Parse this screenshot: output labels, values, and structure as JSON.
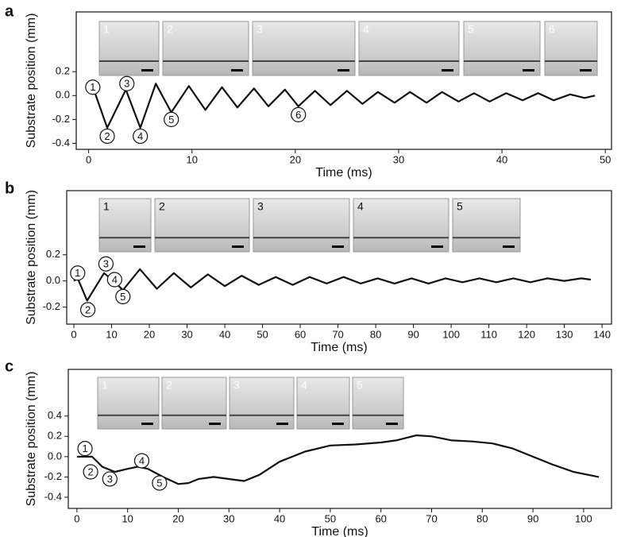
{
  "chart_data": [
    {
      "type": "line",
      "panel": "a",
      "xlabel": "Time (ms)",
      "ylabel": "Substrate position (mm)",
      "xlim": [
        -1.2,
        50.6
      ],
      "ylim": [
        -0.45,
        0.7
      ],
      "xticks": [
        0,
        10,
        20,
        30,
        40,
        50
      ],
      "yticks": [
        -0.4,
        -0.2,
        {
          "value": 0,
          "label": "0.0"
        },
        0.2
      ],
      "x": [
        0,
        0.5,
        1.8,
        3.6,
        5,
        6.5,
        8,
        9.7,
        11.3,
        12.9,
        14.4,
        16,
        17.4,
        19,
        20.3,
        21.9,
        23.4,
        25,
        26.5,
        28,
        29.6,
        31.1,
        32.7,
        34.2,
        35.8,
        37.3,
        38.8,
        40.4,
        42,
        43.5,
        45,
        46.6,
        48,
        49
      ],
      "series": [
        {
          "color": "#111111",
          "values": [
            0.02,
            0.05,
            -0.27,
            0.05,
            -0.27,
            0.1,
            -0.14,
            0.08,
            -0.12,
            0.07,
            -0.1,
            0.06,
            -0.09,
            0.05,
            -0.09,
            0.04,
            -0.08,
            0.04,
            -0.07,
            0.03,
            -0.06,
            0.03,
            -0.06,
            0.03,
            -0.05,
            0.02,
            -0.05,
            0.02,
            -0.04,
            0.02,
            -0.04,
            0.01,
            -0.02,
            0.0
          ]
        }
      ],
      "annotations": [
        {
          "label": "1",
          "x": 0.4,
          "y": 0.07
        },
        {
          "label": "2",
          "x": 1.8,
          "y": -0.34
        },
        {
          "label": "3",
          "x": 3.7,
          "y": 0.1
        },
        {
          "label": "4",
          "x": 5,
          "y": -0.34
        },
        {
          "label": "5",
          "x": 8,
          "y": -0.2
        },
        {
          "label": "6",
          "x": 20.3,
          "y": -0.16
        }
      ],
      "insets": [
        "1",
        "2",
        "3",
        "4",
        "5",
        "6"
      ]
    },
    {
      "type": "line",
      "panel": "b",
      "xlabel": "Time (ms)",
      "ylabel": "Substrate position (mm)",
      "xlim": [
        -1.9,
        142.5
      ],
      "ylim": [
        -0.33,
        0.69
      ],
      "xticks": [
        0,
        10,
        20,
        30,
        40,
        50,
        60,
        70,
        80,
        90,
        100,
        110,
        120,
        130,
        140
      ],
      "yticks": [
        -0.2,
        {
          "value": 0,
          "label": "0.0"
        },
        0.2
      ],
      "x": [
        0,
        1,
        3.5,
        8,
        10.5,
        13,
        17.5,
        22,
        26.5,
        31,
        35.5,
        40,
        44.5,
        49,
        53.5,
        58,
        62.5,
        67,
        71.5,
        76,
        80.5,
        85,
        89.5,
        94,
        98.5,
        103,
        107.5,
        112,
        116.5,
        121,
        125.5,
        130,
        134.5,
        137
      ],
      "series": [
        {
          "color": "#111111",
          "values": [
            0,
            0.02,
            -0.15,
            0.06,
            0.0,
            -0.07,
            0.09,
            -0.06,
            0.06,
            -0.05,
            0.05,
            -0.04,
            0.04,
            -0.03,
            0.03,
            -0.03,
            0.03,
            -0.02,
            0.03,
            -0.02,
            0.02,
            -0.02,
            0.02,
            -0.02,
            0.02,
            -0.01,
            0.02,
            -0.01,
            0.02,
            -0.01,
            0.02,
            0.0,
            0.02,
            0.01
          ]
        }
      ],
      "annotations": [
        {
          "label": "1",
          "x": 1,
          "y": 0.06
        },
        {
          "label": "2",
          "x": 3.7,
          "y": -0.22
        },
        {
          "label": "3",
          "x": 8.5,
          "y": 0.13
        },
        {
          "label": "4",
          "x": 10.8,
          "y": 0.01
        },
        {
          "label": "5",
          "x": 13,
          "y": -0.12
        }
      ],
      "insets": [
        "1",
        "2",
        "3",
        "4",
        "5"
      ]
    },
    {
      "type": "line",
      "panel": "c",
      "xlabel": "Time (ms)",
      "ylabel": "Substrate position (mm)",
      "xlim": [
        -1.7,
        105.5
      ],
      "ylim": [
        -0.51,
        0.86
      ],
      "xticks": [
        0,
        10,
        20,
        30,
        40,
        50,
        60,
        70,
        80,
        90,
        100
      ],
      "yticks": [
        -0.4,
        -0.2,
        {
          "value": 0,
          "label": "0.0"
        },
        0.2,
        0.4
      ],
      "x": [
        0,
        3,
        5,
        7.5,
        10,
        12,
        14,
        17,
        20,
        22,
        24,
        27,
        30,
        33,
        36,
        40,
        45,
        50,
        55,
        60,
        63,
        67,
        70,
        74,
        78,
        82,
        86,
        90,
        94,
        98,
        103
      ],
      "series": [
        {
          "color": "#111111",
          "values": [
            0.0,
            0.0,
            -0.1,
            -0.15,
            -0.12,
            -0.1,
            -0.12,
            -0.2,
            -0.27,
            -0.26,
            -0.22,
            -0.2,
            -0.22,
            -0.24,
            -0.18,
            -0.05,
            0.05,
            0.11,
            0.12,
            0.14,
            0.16,
            0.21,
            0.2,
            0.16,
            0.15,
            0.13,
            0.08,
            0.0,
            -0.08,
            -0.15,
            -0.2
          ]
        }
      ],
      "annotations": [
        {
          "label": "1",
          "x": 1.6,
          "y": 0.08
        },
        {
          "label": "2",
          "x": 2.7,
          "y": -0.15
        },
        {
          "label": "3",
          "x": 6.5,
          "y": -0.22
        },
        {
          "label": "4",
          "x": 12.8,
          "y": -0.04
        },
        {
          "label": "5",
          "x": 16.3,
          "y": -0.26
        }
      ],
      "insets": [
        "1",
        "2",
        "3",
        "4",
        "5"
      ]
    }
  ]
}
